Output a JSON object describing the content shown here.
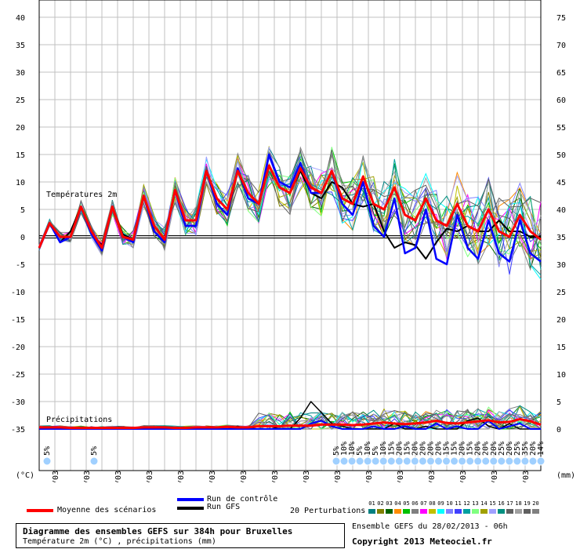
{
  "footer": {
    "title": "Diagramme des ensembles GEFS sur 384h pour Bruxelles",
    "subtitle": "Température 2m (°C) , précipitations (mm)",
    "ensemble": "Ensemble GEFS du 28/02/2013 - 06h",
    "copyright": "Copyright 2013 Meteociel.fr"
  },
  "legend": {
    "mean": "Moyenne des scénarios",
    "control": "Run de contrôle",
    "gfs": "Run GFS",
    "perturbations": "20 Perturbations",
    "mean_color": "#ff0000",
    "control_color": "#0000ff",
    "gfs_color": "#000000",
    "member_numbers": [
      "01",
      "02",
      "03",
      "04",
      "05",
      "06",
      "07",
      "08",
      "09",
      "10",
      "11",
      "12",
      "13",
      "14",
      "15",
      "16",
      "17",
      "18",
      "19",
      "20"
    ],
    "member_colors": [
      "#008080",
      "#808000",
      "#006400",
      "#ff8c00",
      "#00c000",
      "#808080",
      "#ff00ff",
      "#c0c000",
      "#00ffff",
      "#8080ff",
      "#4040ff",
      "#00a0a0",
      "#80ff80",
      "#a0a000",
      "#a0a0ff",
      "#009080",
      "#606060",
      "#a0a0a0",
      "#606060",
      "#808080"
    ]
  },
  "chart_data": {
    "type": "line",
    "temp_label": "Températures 2m",
    "precip_label": "Précipitations",
    "left_axis_label": "(°C)",
    "right_axis_label": "(mm)",
    "left_ticks": [
      40,
      35,
      30,
      25,
      20,
      15,
      10,
      5,
      0,
      -5,
      -10,
      -15,
      -20,
      -25,
      -30,
      -35
    ],
    "right_ticks": [
      75,
      70,
      65,
      60,
      55,
      50,
      45,
      40,
      35,
      30,
      25,
      20,
      15,
      10,
      5,
      0
    ],
    "ylim_temp": [
      -35,
      40
    ],
    "ylim_precip_mm": [
      0,
      75
    ],
    "dates": [
      "01/03",
      "02/03",
      "03/03",
      "04/03",
      "05/03",
      "06/03",
      "07/03",
      "08/03",
      "09/03",
      "10/03",
      "11/03",
      "12/03",
      "13/03",
      "14/03",
      "15/03",
      "16/03"
    ],
    "snow_probabilities": [
      "5%",
      "5%",
      "5%",
      "10%",
      "10%",
      "5%",
      "10%",
      "5%",
      "10%",
      "15%",
      "20%",
      "15%",
      "20%",
      "20%",
      "20%",
      "20%",
      "15%",
      "15%",
      "20%",
      "15%",
      "20%",
      "20%",
      "20%",
      "25%",
      "20%",
      "25%",
      "35%",
      "20%",
      "14%"
    ],
    "mean_temp": [
      -2,
      2.5,
      0,
      0,
      5.5,
      1,
      -2,
      5.5,
      0,
      -0.5,
      7.5,
      2,
      -0.5,
      8.5,
      3,
      3,
      12,
      7,
      5,
      12,
      8,
      6,
      13,
      9,
      8,
      12.5,
      9,
      8,
      12,
      7,
      6,
      11,
      6,
      5,
      9,
      4,
      3,
      7,
      3,
      2,
      6,
      2,
      1,
      5,
      1,
      0,
      4,
      1,
      -0.5
    ],
    "control_temp": [
      -2,
      2.5,
      -1,
      0,
      5.5,
      0.5,
      -2.5,
      5.5,
      0,
      -1,
      7.5,
      1,
      -1,
      8.5,
      2,
      2,
      12,
      6,
      4,
      12.5,
      7,
      6,
      15,
      10,
      9,
      13.5,
      8,
      8,
      12,
      6,
      4,
      10,
      2,
      0,
      7,
      -3,
      -2,
      5,
      -4,
      -5,
      4,
      -2,
      -4,
      3,
      -3,
      -4.5,
      3,
      -3,
      -4.5
    ],
    "gfs_temp": [
      -2,
      2.5,
      -1,
      1,
      5.5,
      0.5,
      -1.5,
      5.5,
      0.5,
      -0.5,
      7.5,
      1,
      -1,
      8.5,
      2,
      2,
      12,
      6,
      4,
      12,
      7,
      6,
      13,
      9,
      8,
      12,
      8,
      7,
      10,
      9,
      6,
      5.5,
      6,
      1,
      -2,
      -1,
      -1.5,
      -4,
      -1,
      1.5,
      1,
      2,
      1,
      1,
      3,
      1,
      1,
      0,
      0
    ],
    "mean_precip_mm": [
      0.3,
      0.3,
      0.3,
      0.2,
      0.2,
      0.2,
      0.2,
      0.2,
      0.2,
      0.2,
      0.3,
      0.3,
      0.3,
      0.2,
      0.2,
      0.3,
      0.3,
      0.3,
      0.4,
      0.3,
      0.3,
      0.5,
      0.5,
      0.5,
      0.6,
      0.6,
      0.6,
      0.8,
      0.8,
      0.8,
      0.7,
      0.8,
      1.0,
      1.2,
      1.0,
      0.9,
      1.0,
      1.2,
      1.5,
      1.1,
      1.0,
      1.2,
      1.4,
      1.6,
      1.2,
      1.3,
      1.8,
      1.4,
      0.8
    ],
    "control_precip_mm": [
      0,
      0,
      0,
      0,
      0,
      0,
      0,
      0,
      0,
      0,
      0,
      0,
      0,
      0,
      0,
      0,
      0,
      0,
      0,
      0,
      0,
      0,
      0,
      0,
      0,
      0,
      1,
      1.5,
      0.5,
      0,
      0,
      0,
      0.5,
      0,
      0,
      0.5,
      0,
      0,
      1,
      0,
      0.5,
      0,
      0,
      1.5,
      0,
      0.5,
      1,
      0,
      0
    ],
    "gfs_precip_mm": [
      0,
      0,
      0,
      0,
      0,
      0,
      0,
      0,
      0,
      0,
      0,
      0,
      0,
      0,
      0,
      0,
      0,
      0,
      0,
      0.5,
      0,
      0.5,
      0.5,
      0,
      0,
      2,
      5,
      3,
      1,
      0.5,
      0,
      0,
      0,
      0,
      1,
      0,
      0,
      0.5,
      0,
      0,
      0,
      1.5,
      2,
      0.5,
      0,
      1,
      0,
      0,
      0
    ]
  }
}
